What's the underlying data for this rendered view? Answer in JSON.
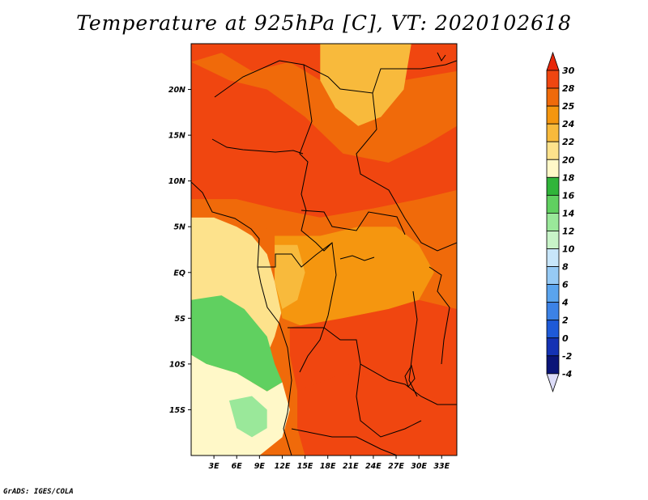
{
  "title": "Temperature at 925hPa [C], VT: 2020102618",
  "credit": "GrADS: IGES/COLA",
  "chart_data": {
    "type": "heatmap",
    "title": "Temperature at 925hPa [C], VT: 2020102618",
    "xlim": [
      0,
      35
    ],
    "ylim": [
      -20,
      25
    ],
    "x_ticks": [
      {
        "value": 3,
        "label": "3E"
      },
      {
        "value": 6,
        "label": "6E"
      },
      {
        "value": 9,
        "label": "9E"
      },
      {
        "value": 12,
        "label": "12E"
      },
      {
        "value": 15,
        "label": "15E"
      },
      {
        "value": 18,
        "label": "18E"
      },
      {
        "value": 21,
        "label": "21E"
      },
      {
        "value": 24,
        "label": "24E"
      },
      {
        "value": 27,
        "label": "27E"
      },
      {
        "value": 30,
        "label": "30E"
      },
      {
        "value": 33,
        "label": "33E"
      }
    ],
    "y_ticks": [
      {
        "value": 20,
        "label": "20N"
      },
      {
        "value": 15,
        "label": "15N"
      },
      {
        "value": 10,
        "label": "10N"
      },
      {
        "value": 5,
        "label": "5N"
      },
      {
        "value": 0,
        "label": "EQ"
      },
      {
        "value": -5,
        "label": "5S"
      },
      {
        "value": -10,
        "label": "10S"
      },
      {
        "value": -15,
        "label": "15S"
      }
    ],
    "colorbar": {
      "labels": [
        "30",
        "28",
        "25",
        "24",
        "22",
        "20",
        "18",
        "16",
        "14",
        "12",
        "10",
        "8",
        "6",
        "4",
        "2",
        "0",
        "-2",
        "-4"
      ],
      "colors": [
        "#e8270a",
        "#f04610",
        "#f06a0a",
        "#f5960f",
        "#f8ba3c",
        "#fde28c",
        "#fff8c8",
        "#30b53a",
        "#60d060",
        "#9ae89a",
        "#c8f4c8",
        "#c8e6fa",
        "#96caf5",
        "#5aa4ee",
        "#3c82e6",
        "#1e5ad8",
        "#1432b4",
        "#0a1478",
        "#141464"
      ]
    },
    "regions": [
      {
        "name": "far-north-hot",
        "value": 29,
        "pts": [
          [
            0,
            25
          ],
          [
            35,
            25
          ],
          [
            35,
            22
          ],
          [
            28,
            21
          ],
          [
            22,
            20
          ],
          [
            17,
            21
          ],
          [
            13,
            23
          ],
          [
            8,
            22
          ],
          [
            4,
            24
          ],
          [
            0,
            23
          ]
        ]
      },
      {
        "name": "east-cooler-north",
        "value": 23,
        "pts": [
          [
            17,
            25
          ],
          [
            29,
            25
          ],
          [
            28,
            20
          ],
          [
            25,
            17
          ],
          [
            22,
            16
          ],
          [
            19,
            18
          ],
          [
            17,
            21
          ]
        ]
      },
      {
        "name": "sahel-belt",
        "value": 28,
        "pts": [
          [
            0,
            23
          ],
          [
            5,
            21
          ],
          [
            10,
            20
          ],
          [
            15,
            17
          ],
          [
            20,
            13
          ],
          [
            26,
            12
          ],
          [
            31,
            14
          ],
          [
            35,
            16
          ],
          [
            35,
            9
          ],
          [
            30,
            8
          ],
          [
            24,
            7
          ],
          [
            17,
            6
          ],
          [
            11,
            7
          ],
          [
            6,
            8
          ],
          [
            0,
            8
          ]
        ]
      },
      {
        "name": "coast-west-africa",
        "value": 25,
        "pts": [
          [
            0,
            8
          ],
          [
            6,
            8
          ],
          [
            11,
            7
          ],
          [
            17,
            6
          ],
          [
            24,
            7
          ],
          [
            30,
            8
          ],
          [
            35,
            9
          ],
          [
            35,
            4
          ],
          [
            27,
            4
          ],
          [
            20,
            5
          ],
          [
            14,
            4
          ],
          [
            9,
            5
          ],
          [
            6,
            5
          ],
          [
            3,
            6
          ],
          [
            0,
            6
          ]
        ]
      },
      {
        "name": "gulf-cool",
        "value": 21,
        "pts": [
          [
            0,
            6
          ],
          [
            3,
            6
          ],
          [
            6,
            5
          ],
          [
            8,
            4
          ],
          [
            10,
            2
          ],
          [
            11,
            -1
          ],
          [
            12,
            -4
          ],
          [
            11,
            -7
          ],
          [
            10,
            -9
          ],
          [
            9,
            -12
          ],
          [
            0,
            -12
          ]
        ]
      },
      {
        "name": "congo-warm",
        "value": 24,
        "pts": [
          [
            11,
            4
          ],
          [
            17,
            4
          ],
          [
            22,
            5
          ],
          [
            27,
            5
          ],
          [
            30,
            3
          ],
          [
            32,
            0
          ],
          [
            30,
            -3
          ],
          [
            26,
            -4
          ],
          [
            20,
            -5
          ],
          [
            15,
            -6
          ],
          [
            12,
            -5
          ],
          [
            11,
            -1
          ]
        ]
      },
      {
        "name": "central-mild",
        "value": 22,
        "pts": [
          [
            11,
            3
          ],
          [
            14,
            3
          ],
          [
            15,
            0
          ],
          [
            14,
            -3
          ],
          [
            12,
            -4
          ],
          [
            11,
            -1
          ]
        ]
      },
      {
        "name": "south-warm",
        "value": 28,
        "pts": [
          [
            13,
            -6
          ],
          [
            20,
            -5
          ],
          [
            26,
            -4
          ],
          [
            30,
            -3
          ],
          [
            35,
            -4
          ],
          [
            35,
            -20
          ],
          [
            15,
            -20
          ],
          [
            14,
            -17
          ],
          [
            14,
            -13
          ],
          [
            13,
            -9
          ]
        ]
      },
      {
        "name": "south-hot",
        "value": 29.5,
        "pts": [
          [
            14,
            -13
          ],
          [
            20,
            -11
          ],
          [
            27,
            -12
          ],
          [
            33,
            -14
          ],
          [
            35,
            -15
          ],
          [
            35,
            -20
          ],
          [
            15,
            -20
          ],
          [
            14,
            -17
          ]
        ]
      },
      {
        "name": "angola-green",
        "value": 15,
        "pts": [
          [
            0,
            -3
          ],
          [
            4,
            -2.5
          ],
          [
            7,
            -4
          ],
          [
            10,
            -7
          ],
          [
            11,
            -10
          ],
          [
            12,
            -12
          ],
          [
            10,
            -13
          ],
          [
            6,
            -11
          ],
          [
            2,
            -10
          ],
          [
            0,
            -9
          ]
        ]
      },
      {
        "name": "angola-cool",
        "value": 19,
        "pts": [
          [
            0,
            -9
          ],
          [
            2,
            -10
          ],
          [
            6,
            -11
          ],
          [
            10,
            -13
          ],
          [
            12,
            -12
          ],
          [
            13,
            -15
          ],
          [
            12,
            -18
          ],
          [
            9,
            -20
          ],
          [
            0,
            -20
          ]
        ]
      },
      {
        "name": "namibia-green",
        "value": 13,
        "pts": [
          [
            5,
            -14
          ],
          [
            8,
            -13.5
          ],
          [
            10,
            -15
          ],
          [
            10,
            -17
          ],
          [
            8,
            -18
          ],
          [
            6,
            -17
          ]
        ]
      }
    ]
  }
}
